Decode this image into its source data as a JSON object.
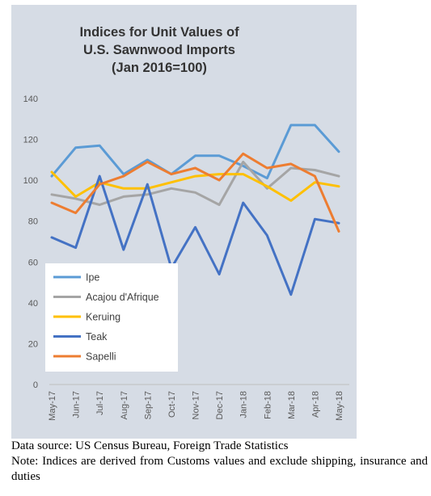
{
  "chart_data": {
    "type": "line",
    "title": "Indices for Unit Values of U.S. Sawnwood Imports (Jan 2016=100)",
    "title_lines": [
      "Indices for Unit Values of",
      "U.S. Sawnwood Imports",
      "(Jan 2016=100)"
    ],
    "xlabel": "",
    "ylabel": "",
    "ylim": [
      0,
      140
    ],
    "yticks": [
      0,
      20,
      40,
      60,
      80,
      100,
      120,
      140
    ],
    "categories": [
      "May-17",
      "Jun-17",
      "Jul-17",
      "Aug-17",
      "Sep-17",
      "Oct-17",
      "Nov-17",
      "Dec-17",
      "Jan-18",
      "Feb-18",
      "Mar-18",
      "Apr-18",
      "May-18"
    ],
    "grid": false,
    "legend_position": "lower-left",
    "series": [
      {
        "name": "Ipe",
        "color": "#5b9bd5",
        "values": [
          102,
          116,
          117,
          103,
          110,
          103,
          112,
          112,
          107,
          101,
          127,
          127,
          114
        ]
      },
      {
        "name": "Acajou d'Afrique",
        "color": "#a5a5a5",
        "values": [
          93,
          91,
          88,
          92,
          93,
          96,
          94,
          88,
          109,
          96,
          106,
          105,
          102
        ]
      },
      {
        "name": "Keruing",
        "color": "#ffc000",
        "values": [
          104,
          92,
          99,
          96,
          96,
          99,
          102,
          103,
          103,
          97,
          90,
          99,
          97
        ]
      },
      {
        "name": "Teak",
        "color": "#4472c4",
        "values": [
          72,
          67,
          102,
          66,
          98,
          57,
          77,
          54,
          89,
          73,
          44,
          81,
          79
        ]
      },
      {
        "name": "Sapelli",
        "color": "#ed7d31",
        "values": [
          89,
          84,
          98,
          102,
          109,
          103,
          106,
          100,
          113,
          106,
          108,
          102,
          75
        ]
      }
    ]
  },
  "footnotes": {
    "source": "Data source: US Census Bureau, Foreign Trade Statistics",
    "note": "Note: Indices are derived from Customs values and exclude shipping, insurance and duties"
  }
}
